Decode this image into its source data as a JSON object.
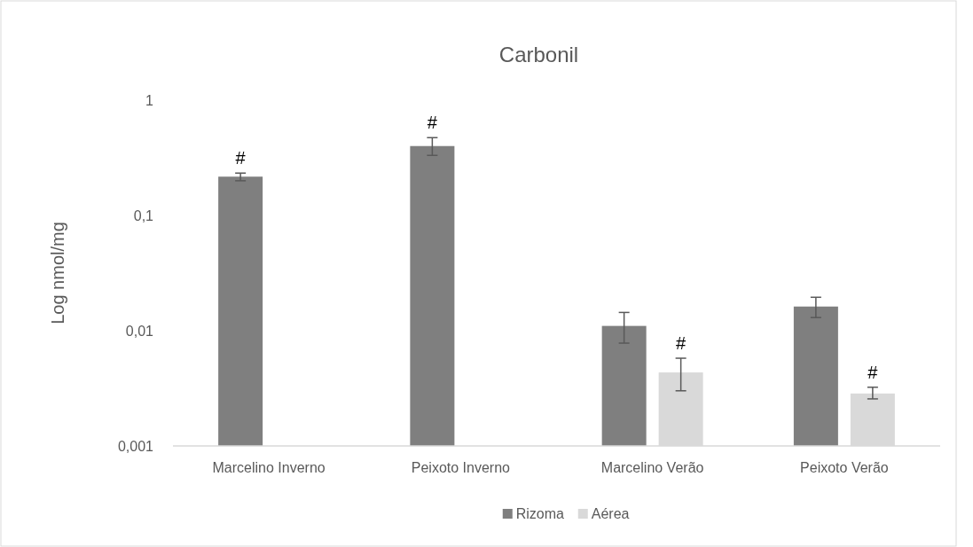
{
  "chart_data": {
    "type": "bar",
    "title": "Carbonil",
    "ylabel": "Log nmol/mg",
    "categories": [
      "Marcelino Inverno",
      "Peixoto Inverno",
      "Marcelino Verão",
      "Peixoto Verão"
    ],
    "series": [
      {
        "name": "Rizoma",
        "color": "#7f7f7f",
        "values": [
          0.217,
          0.4,
          0.011,
          0.0162
        ],
        "errors": [
          [
            0.2,
            0.233
          ],
          [
            0.332,
            0.473
          ],
          [
            0.0078,
            0.0144
          ],
          [
            0.013,
            0.0195
          ]
        ],
        "value_labels": [
          "#",
          "#",
          null,
          null
        ]
      },
      {
        "name": "Aérea",
        "color": "#d9d9d9",
        "values": [
          null,
          null,
          0.00434,
          0.00285
        ],
        "errors": [
          null,
          null,
          [
            0.00301,
            0.00577
          ],
          [
            0.00256,
            0.00323
          ]
        ],
        "value_labels": [
          null,
          null,
          "#",
          "#"
        ]
      }
    ],
    "log": true,
    "ylim": [
      0.001,
      1
    ],
    "yticks": [
      {
        "value": 0.001,
        "label": "0,001"
      },
      {
        "value": 0.01,
        "label": "0,01"
      },
      {
        "value": 0.1,
        "label": "0,1"
      },
      1
    ],
    "grid": false,
    "legend": "bottom"
  }
}
